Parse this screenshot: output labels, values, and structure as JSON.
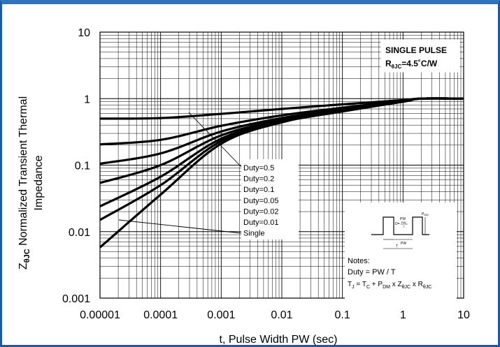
{
  "chart_data": {
    "type": "line",
    "xlabel": "t, Pulse Width PW (sec)",
    "ylabel_prefix": "Z",
    "ylabel_sub": "θJC",
    "ylabel_rest": " Normalized Transient Thermal",
    "ylabel_line2": "Impedance",
    "x_scale": "log",
    "y_scale": "log",
    "xlim": [
      1e-05,
      10
    ],
    "ylim": [
      0.001,
      10
    ],
    "grid": true,
    "x_ticks": [
      {
        "v": 1e-05,
        "label": "0.00001"
      },
      {
        "v": 0.0001,
        "label": "0.0001"
      },
      {
        "v": 0.001,
        "label": "0.001"
      },
      {
        "v": 0.01,
        "label": "0.01"
      },
      {
        "v": 0.1,
        "label": "0.1"
      },
      {
        "v": 1,
        "label": "1"
      },
      {
        "v": 10,
        "label": "10"
      }
    ],
    "y_ticks": [
      {
        "v": 0.001,
        "label": "0.001"
      },
      {
        "v": 0.01,
        "label": "0.01"
      },
      {
        "v": 0.1,
        "label": "0.1"
      },
      {
        "v": 1,
        "label": "1"
      },
      {
        "v": 10,
        "label": "10"
      }
    ],
    "series": [
      {
        "name": "Duty=0.5",
        "x": [
          1e-05,
          0.0001,
          0.001,
          0.01,
          0.1,
          1,
          2,
          10
        ],
        "y": [
          0.5,
          0.51,
          0.59,
          0.7,
          0.82,
          0.95,
          1.0,
          1.0
        ]
      },
      {
        "name": "Duty=0.2",
        "x": [
          1e-05,
          0.0001,
          0.001,
          0.01,
          0.1,
          1,
          2,
          10
        ],
        "y": [
          0.205,
          0.24,
          0.39,
          0.56,
          0.73,
          0.93,
          1.0,
          1.0
        ]
      },
      {
        "name": "Duty=0.1",
        "x": [
          1e-05,
          0.0001,
          0.001,
          0.01,
          0.1,
          1,
          2,
          10
        ],
        "y": [
          0.105,
          0.15,
          0.32,
          0.51,
          0.69,
          0.92,
          1.0,
          1.0
        ]
      },
      {
        "name": "Duty=0.05",
        "x": [
          1e-05,
          0.0001,
          0.001,
          0.01,
          0.1,
          1,
          2,
          10
        ],
        "y": [
          0.054,
          0.1,
          0.28,
          0.48,
          0.67,
          0.91,
          1.0,
          1.0
        ]
      },
      {
        "name": "Duty=0.02",
        "x": [
          1e-05,
          0.0001,
          0.001,
          0.01,
          0.1,
          1,
          2,
          10
        ],
        "y": [
          0.024,
          0.067,
          0.25,
          0.46,
          0.66,
          0.91,
          1.0,
          1.0
        ]
      },
      {
        "name": "Duty=0.01",
        "x": [
          1e-05,
          0.0001,
          0.001,
          0.01,
          0.1,
          1,
          2,
          10
        ],
        "y": [
          0.015,
          0.05,
          0.23,
          0.45,
          0.65,
          0.9,
          1.0,
          1.0
        ]
      },
      {
        "name": "Single",
        "x": [
          1e-05,
          0.0001,
          0.001,
          0.01,
          0.1,
          1,
          2,
          10
        ],
        "y": [
          0.0058,
          0.036,
          0.21,
          0.44,
          0.64,
          0.9,
          1.0,
          1.0
        ]
      }
    ],
    "legend_labels": [
      "Duty=0.5",
      "Duty=0.2",
      "Duty=0.1",
      "Duty=0.05",
      "Duty=0.02",
      "Duty=0.01",
      "Single"
    ],
    "annotation": {
      "line1": "SINGLE PULSE",
      "r_prefix": "R",
      "r_sub": "θJC",
      "r_rest": "=4.5˚C/W"
    },
    "notes": {
      "title": "Notes:",
      "line1": "Duty = PW / T",
      "tj_T": "T",
      "tj_J": "J",
      "tj_eq1": " = T",
      "tj_C": "C",
      "tj_plus": " + P",
      "tj_DM": "DM",
      "tj_x1": " x Z",
      "tj_z": "θJC",
      "tj_x2": " x R",
      "tj_r": "θJC"
    },
    "pulse_diagram": {
      "pdm_label": "P",
      "pdm_sub": "DM",
      "pw_label": "PW",
      "ratio_label": "D=",
      "ratio_num": "PW",
      "ratio_den": "T",
      "pw_bottom_label": "PW",
      "t_label": "T"
    }
  }
}
